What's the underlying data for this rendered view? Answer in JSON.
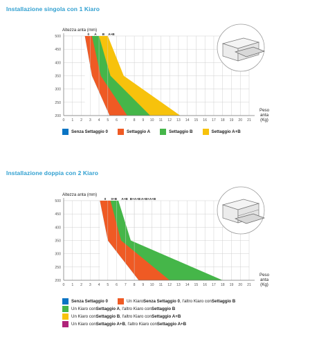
{
  "colors": {
    "blue": "#0a74c4",
    "orange": "#ef5a24",
    "green": "#45b649",
    "yellow": "#f7c20c",
    "magenta": "#b0237a",
    "grid": "#cfcfcf",
    "title": "#2f9fd0"
  },
  "icons": {
    "chart1": "cabinet-single-drawer-icon",
    "chart2": "cabinet-double-drawer-icon"
  },
  "chart_data": [
    {
      "type": "area",
      "title": "Installazione singola con 1 Kiaro",
      "ylabel": "Altezza anta (mm)",
      "xlabel_lines": [
        "Peso",
        "anta",
        "(Kg)"
      ],
      "xlim": [
        0,
        21
      ],
      "ylim": [
        200,
        500
      ],
      "x_ticks": [
        0,
        1,
        2,
        3,
        4,
        5,
        6,
        7,
        8,
        9,
        10,
        11,
        12,
        13,
        14,
        15,
        16,
        17,
        18,
        19,
        20,
        21
      ],
      "y_ticks": [
        200,
        250,
        300,
        350,
        400,
        450,
        500
      ],
      "top_labels": [
        "0",
        "A",
        "B",
        "A+B"
      ],
      "series": [
        {
          "name": "Senza Settaggio 0",
          "color": "blue",
          "x": [
            2.4,
            3.2,
            5.2
          ],
          "y": [
            500,
            350,
            200
          ]
        },
        {
          "name": "Settaggio A",
          "color": "orange",
          "x": [
            3.2,
            4.2,
            7.2
          ],
          "y": [
            500,
            350,
            200
          ]
        },
        {
          "name": "Settaggio B",
          "color": "green",
          "x": [
            4.0,
            5.3,
            9.8
          ],
          "y": [
            500,
            350,
            200
          ]
        },
        {
          "name": "Settaggio A+B",
          "color": "yellow",
          "x": [
            5.0,
            6.8,
            13.2
          ],
          "y": [
            500,
            350,
            200
          ]
        }
      ]
    },
    {
      "type": "area",
      "title": "Installazione doppia con 2 Kiaro",
      "ylabel": "Altezza anta (mm)",
      "xlabel_lines": [
        "Peso",
        "anta",
        "(Kg)"
      ],
      "xlim": [
        0,
        21
      ],
      "ylim": [
        200,
        500
      ],
      "x_ticks": [
        0,
        1,
        2,
        3,
        4,
        5,
        6,
        7,
        8,
        9,
        10,
        11,
        12,
        13,
        14,
        15,
        16,
        17,
        18,
        19,
        20,
        21
      ],
      "y_ticks": [
        200,
        250,
        300,
        350,
        400,
        450,
        500
      ],
      "top_labels": [
        "0",
        "0+B",
        "A+B",
        "B+A+B",
        "A+B+A+B"
      ],
      "series": [
        {
          "name": "Senza Settaggio 0",
          "color": "blue",
          "x": [
            4.1,
            5.0,
            8.5
          ],
          "y": [
            500,
            350,
            200
          ]
        },
        {
          "name": "Un Kiaro Senza Settaggio 0, l'altro Kiaro con Settaggio B",
          "color": "orange",
          "x": [
            5.3,
            6.5,
            12.0
          ],
          "y": [
            500,
            350,
            200
          ]
        },
        {
          "name": "Un Kiaro con Settaggio A, l'altro Kiaro con Settaggio B",
          "color": "green",
          "x": [
            6.2,
            7.6,
            18.0
          ],
          "y": [
            500,
            350,
            200
          ]
        },
        {
          "name": "Un Kiaro con Settaggio B, l'altro Kiaro con Settaggio A+B",
          "color": "yellow",
          "x": [],
          "y": []
        },
        {
          "name": "Un Kiaro con Settaggio A+B, l'altro Kiaro con Settaggio A+B",
          "color": "magenta",
          "x": [],
          "y": []
        }
      ]
    }
  ],
  "legend1": [
    {
      "parts": [
        "Senza Settaggio 0"
      ],
      "bold": [
        true
      ]
    },
    {
      "parts": [
        "Settaggio A"
      ],
      "bold": [
        true
      ]
    },
    {
      "parts": [
        "Settaggio B"
      ],
      "bold": [
        true
      ]
    },
    {
      "parts": [
        "Settaggio A+B"
      ],
      "bold": [
        true
      ]
    }
  ],
  "legend2": [
    {
      "parts": [
        "Senza Settaggio 0"
      ],
      "bold": [
        true
      ]
    },
    {
      "parts": [
        "Un Kiaro ",
        "Senza Settaggio 0",
        ", l'altro Kiaro con ",
        "Settaggio B"
      ],
      "bold": [
        false,
        true,
        false,
        true
      ]
    },
    {
      "parts": [
        "Un Kiaro con ",
        "Settaggio A",
        ", l'altro Kiaro con ",
        "Settaggio B"
      ],
      "bold": [
        false,
        true,
        false,
        true
      ]
    },
    {
      "parts": [
        "Un Kiaro con ",
        "Settaggio B",
        ", l'altro Kiaro con ",
        "Settaggio A+B"
      ],
      "bold": [
        false,
        true,
        false,
        true
      ]
    },
    {
      "parts": [
        "Un Kiaro con ",
        "Settaggio A+B",
        ", l'altro Kiaro con ",
        "Settaggio A+B"
      ],
      "bold": [
        false,
        true,
        false,
        true
      ]
    }
  ]
}
